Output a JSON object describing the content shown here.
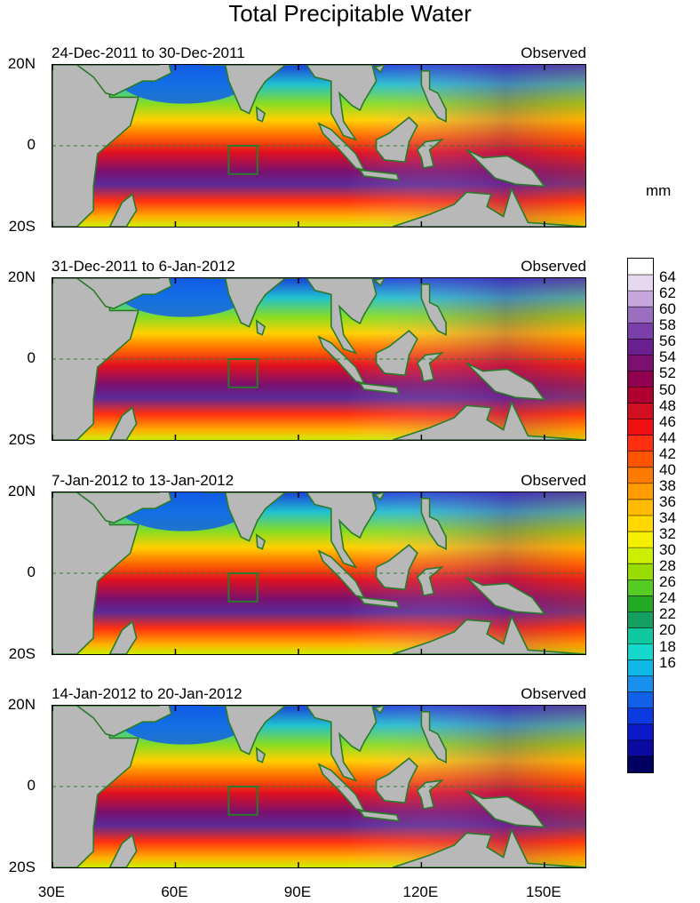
{
  "title": "Total Precipitable Water",
  "units": "mm",
  "panels": [
    {
      "date_range": "24-Dec-2011 to 30-Dec-2011",
      "tag": "Observed"
    },
    {
      "date_range": "31-Dec-2011 to 6-Jan-2012",
      "tag": "Observed"
    },
    {
      "date_range": "7-Jan-2012 to 13-Jan-2012",
      "tag": "Observed"
    },
    {
      "date_range": "14-Jan-2012 to 20-Jan-2012",
      "tag": "Observed"
    }
  ],
  "lat_labels": [
    "20N",
    "0",
    "20S"
  ],
  "lon_labels": [
    "30E",
    "60E",
    "90E",
    "120E",
    "150E"
  ],
  "colorbar_labels": [
    "64",
    "62",
    "60",
    "58",
    "56",
    "54",
    "52",
    "50",
    "48",
    "46",
    "44",
    "42",
    "40",
    "38",
    "36",
    "34",
    "32",
    "30",
    "28",
    "26",
    "24",
    "22",
    "20",
    "18",
    "16"
  ],
  "colorbar_colors": [
    "#ffffff",
    "#e6d8ee",
    "#c8a8dc",
    "#9a6fc0",
    "#7a3fa8",
    "#6a1f8e",
    "#7a1070",
    "#900050",
    "#b00030",
    "#d01020",
    "#ee1010",
    "#ff3010",
    "#ff5500",
    "#ff7a00",
    "#ff9c00",
    "#ffbb00",
    "#ffd800",
    "#f4f000",
    "#ccee00",
    "#99dd00",
    "#55cc22",
    "#22aa22",
    "#15a060",
    "#10c8a0",
    "#14d8cc",
    "#10b8e8",
    "#1890ee",
    "#1060e8",
    "#0a3ae0",
    "#0a18c8",
    "#0a0aa0",
    "#000060"
  ],
  "land_color": "#b8b8b8",
  "coast_color": "#2a7a2a"
}
